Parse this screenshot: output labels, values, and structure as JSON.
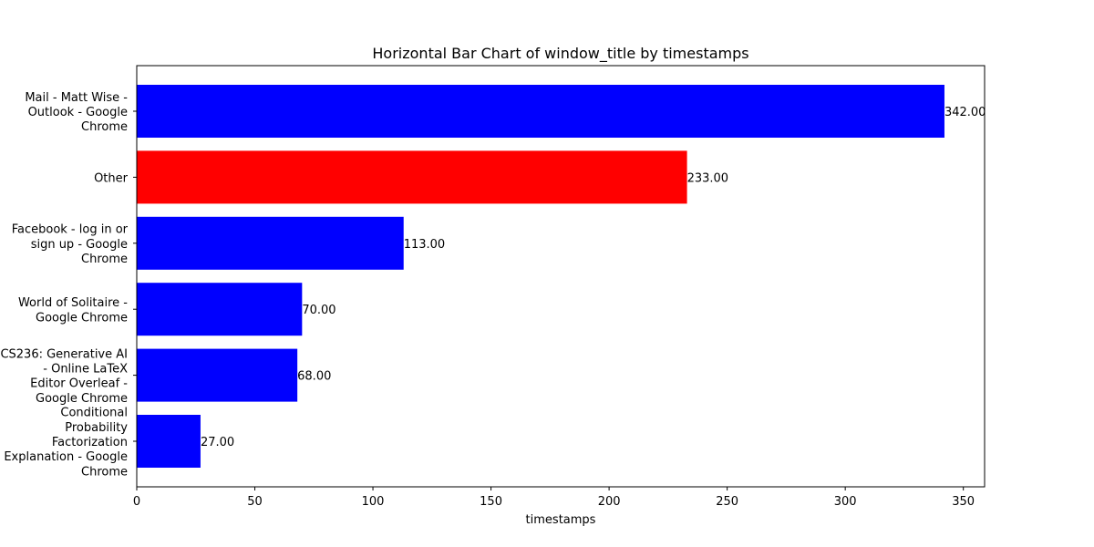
{
  "chart_data": {
    "type": "bar",
    "orientation": "horizontal",
    "title": "Horizontal Bar Chart of window_title by timestamps",
    "xlabel": "timestamps",
    "ylabel": "",
    "xlim": [
      0,
      359
    ],
    "xticks": [
      0,
      50,
      100,
      150,
      200,
      250,
      300,
      350
    ],
    "grid": false,
    "categories": [
      [
        "Mail - Matt Wise -",
        "Outlook - Google",
        "Chrome"
      ],
      [
        "Other"
      ],
      [
        "Facebook - log in or",
        "sign up - Google",
        "Chrome"
      ],
      [
        "World of Solitaire -",
        "Google Chrome"
      ],
      [
        "CS236: Generative AI",
        "- Online LaTeX",
        "Editor Overleaf -",
        "Google Chrome"
      ],
      [
        "Conditional",
        "Probability",
        "Factorization",
        "Explanation - Google",
        "Chrome"
      ]
    ],
    "values": [
      342,
      233,
      113,
      70,
      68,
      27
    ],
    "data_labels": [
      "342.00",
      "233.00",
      "113.00",
      "70.00",
      "68.00",
      "27.00"
    ],
    "colors": [
      "#0000ff",
      "#ff0000",
      "#0000ff",
      "#0000ff",
      "#0000ff",
      "#0000ff"
    ]
  }
}
